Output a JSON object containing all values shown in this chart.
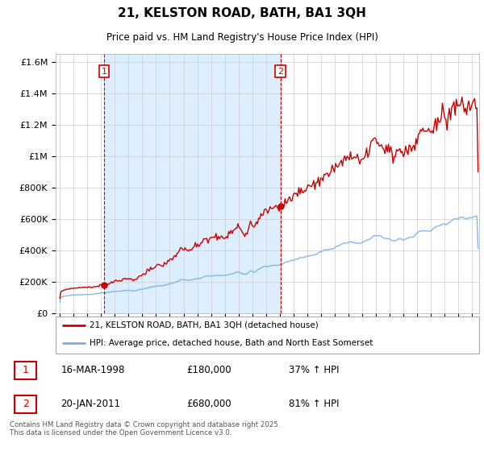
{
  "title": "21, KELSTON ROAD, BATH, BA1 3QH",
  "subtitle": "Price paid vs. HM Land Registry's House Price Index (HPI)",
  "legend_line1": "21, KELSTON ROAD, BATH, BA1 3QH (detached house)",
  "legend_line2": "HPI: Average price, detached house, Bath and North East Somerset",
  "annotation1_label": "1",
  "annotation1_date": "16-MAR-1998",
  "annotation1_price": "£180,000",
  "annotation1_hpi": "37% ↑ HPI",
  "annotation2_label": "2",
  "annotation2_date": "20-JAN-2011",
  "annotation2_price": "£680,000",
  "annotation2_hpi": "81% ↑ HPI",
  "footer": "Contains HM Land Registry data © Crown copyright and database right 2025.\nThis data is licensed under the Open Government Licence v3.0.",
  "price_color": "#cc0000",
  "hpi_color": "#7aafe6",
  "shade_color": "#ddeeff",
  "vline_color": "#cc0000",
  "ylim": [
    0,
    1650000
  ],
  "yticks": [
    0,
    200000,
    400000,
    600000,
    800000,
    1000000,
    1200000,
    1400000,
    1600000
  ],
  "xlim_start": 1994.7,
  "xlim_end": 2025.5,
  "purchase1_x": 1998.21,
  "purchase1_y": 180000,
  "purchase2_x": 2011.05,
  "purchase2_y": 680000
}
